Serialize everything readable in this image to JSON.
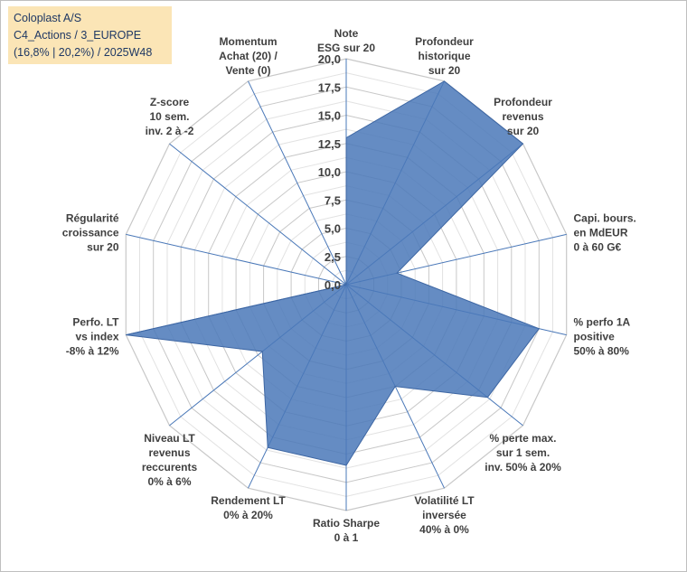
{
  "title_box": {
    "line1": "Coloplast A/S",
    "line2": "C4_Actions / 3_EUROPE",
    "line3": "(16,8% | 20,2%) / 2025W48"
  },
  "chart_data": {
    "type": "radar",
    "range": [
      0,
      20
    ],
    "tick_step": 2.5,
    "tick_labels": [
      "0,0",
      "2,5",
      "5,0",
      "7,5",
      "10,0",
      "12,5",
      "15,0",
      "17,5",
      "20,0"
    ],
    "grid": true,
    "series_color": "#4a78b8",
    "axes": [
      {
        "label": [
          "Note",
          "ESG sur 20"
        ],
        "value": 13.0
      },
      {
        "label": [
          "Profondeur",
          "historique",
          "sur 20"
        ],
        "value": 20.0
      },
      {
        "label": [
          "Profondeur",
          "revenus",
          "sur 20"
        ],
        "value": 20.0
      },
      {
        "label": [
          "Capi. bours.",
          "en MdEUR",
          "0 à 60 G€"
        ],
        "value": 4.6
      },
      {
        "label": [
          "% perfo 1A",
          "positive",
          "50% à 80%"
        ],
        "value": 17.5
      },
      {
        "label": [
          "% perte max.",
          "sur 1 sem.",
          "inv. 50% à 20%"
        ],
        "value": 16.0
      },
      {
        "label": [
          "Volatilité LT",
          "inversée",
          "40% à 0%"
        ],
        "value": 10.0
      },
      {
        "label": [
          "Ratio Sharpe",
          "0 à 1"
        ],
        "value": 16.0
      },
      {
        "label": [
          "Rendement LT",
          "0% à 20%"
        ],
        "value": 16.0
      },
      {
        "label": [
          "Niveau LT",
          "revenus",
          "reccurents",
          "0% à 6%"
        ],
        "value": 9.5
      },
      {
        "label": [
          "Perfo. LT",
          "vs index",
          "-8% à 12%"
        ],
        "value": 20.0
      },
      {
        "label": [
          "Régularité",
          "croissance",
          "sur 20"
        ],
        "value": 0.0
      },
      {
        "label": [
          "Z-score",
          "10 sem.",
          "inv. 2 à -2"
        ],
        "value": 0.0
      },
      {
        "label": [
          "Momentum",
          "Achat (20) /",
          "Vente (0)"
        ],
        "value": 0.0
      }
    ]
  }
}
